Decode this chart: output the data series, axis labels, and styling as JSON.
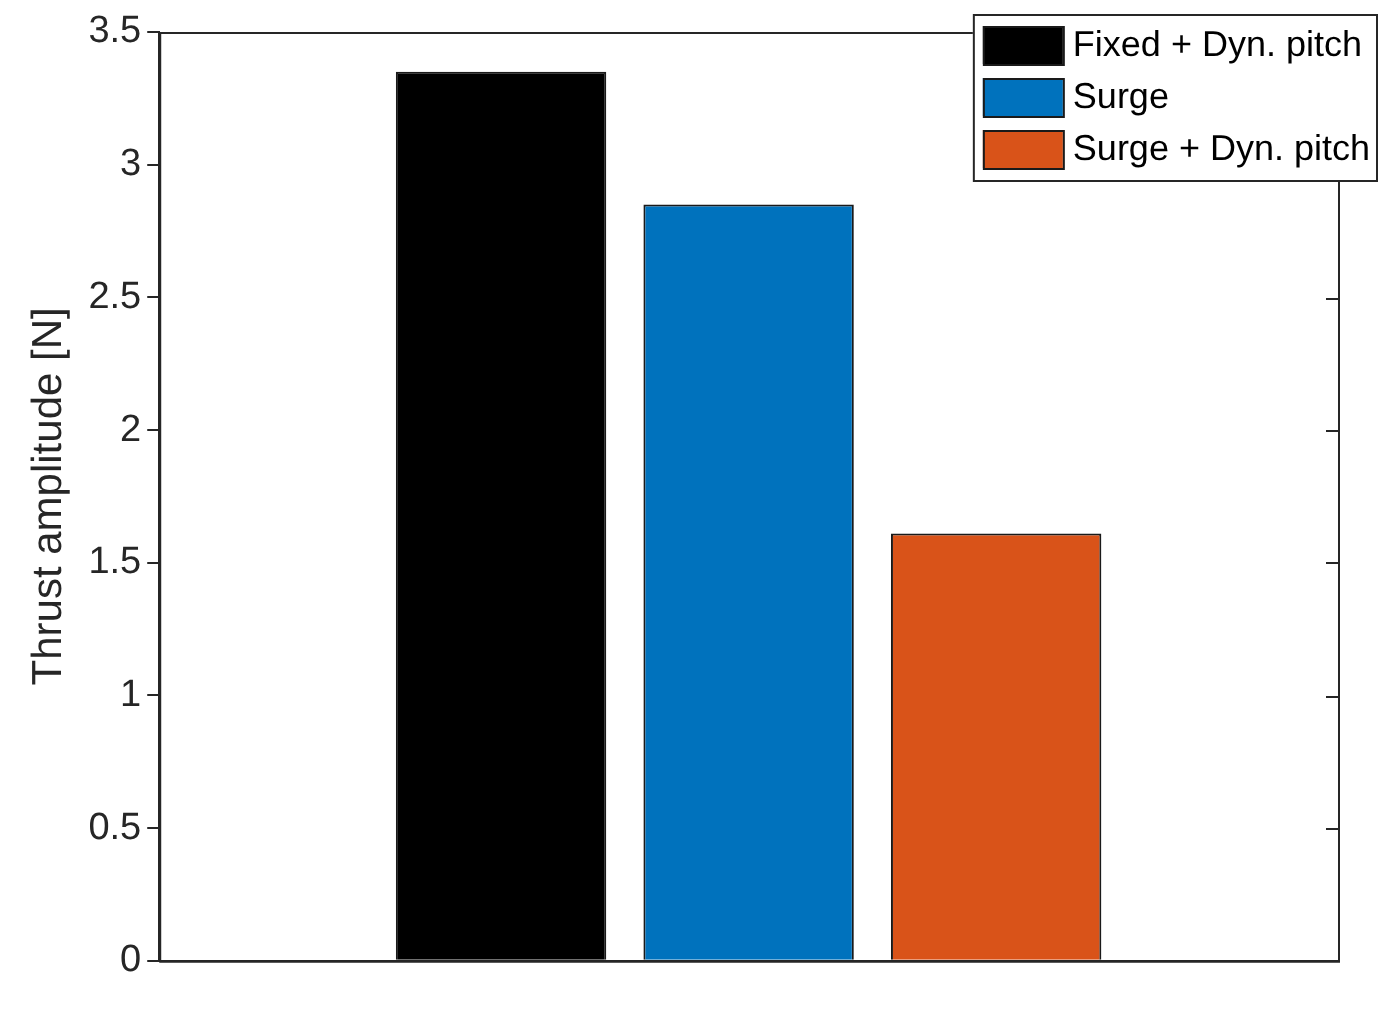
{
  "chart_data": {
    "type": "bar",
    "ylabel": "Thrust amplitude [N]",
    "categories": [
      null
    ],
    "series": [
      {
        "name": "Fixed + Dyn. pitch",
        "color": "#000000",
        "values": [
          3.35
        ]
      },
      {
        "name": "Surge",
        "color": "#0072bd",
        "values": [
          2.85
        ]
      },
      {
        "name": "Surge + Dyn. pitch",
        "color": "#d95319",
        "values": [
          1.61
        ]
      }
    ],
    "ylim": [
      0,
      3.5
    ],
    "yticks": [
      0,
      0.5,
      1,
      1.5,
      2,
      2.5,
      3,
      3.5
    ],
    "grid": false,
    "legend": "top right"
  }
}
